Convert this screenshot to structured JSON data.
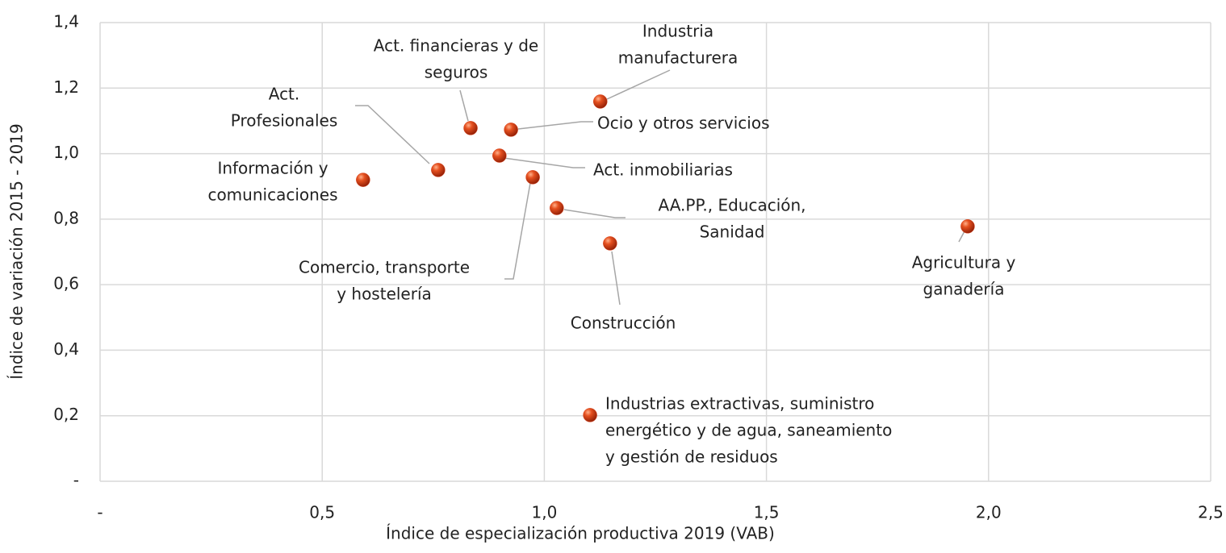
{
  "chart_data": {
    "type": "scatter",
    "x_label": "Índice de especialización productiva 2019 (VAB)",
    "y_label": "Índice de variación 2015 - 2019",
    "xlim": [
      0,
      2.5
    ],
    "ylim": [
      0,
      1.4
    ],
    "xticks": [
      {
        "value": 0,
        "label": "-"
      },
      {
        "value": 0.5,
        "label": "0,5"
      },
      {
        "value": 1.0,
        "label": "1,0"
      },
      {
        "value": 1.5,
        "label": "1,5"
      },
      {
        "value": 2.0,
        "label": "2,0"
      },
      {
        "value": 2.5,
        "label": "2,5"
      }
    ],
    "yticks": [
      {
        "value": 0,
        "label": "-"
      },
      {
        "value": 0.2,
        "label": "0,2"
      },
      {
        "value": 0.4,
        "label": "0,4"
      },
      {
        "value": 0.6,
        "label": "0,6"
      },
      {
        "value": 0.8,
        "label": "0,8"
      },
      {
        "value": 1.0,
        "label": "1,0"
      },
      {
        "value": 1.2,
        "label": "1,2"
      },
      {
        "value": 1.4,
        "label": "1,4"
      }
    ],
    "grid": true,
    "color": "#d8401a",
    "points": [
      {
        "label": [
          "Información y",
          "comunicaciones"
        ],
        "x": 0.592,
        "y": 0.92
      },
      {
        "label": [
          "Act.",
          "Profesionales"
        ],
        "x": 0.761,
        "y": 0.95
      },
      {
        "label": [
          "Act. financieras y de",
          "seguros"
        ],
        "x": 0.834,
        "y": 1.078
      },
      {
        "label": [
          "Act. inmobiliarias"
        ],
        "x": 0.899,
        "y": 0.994
      },
      {
        "label": [
          "Ocio y otros servicios"
        ],
        "x": 0.925,
        "y": 1.073
      },
      {
        "label": [
          "Comercio, transporte",
          "y hostelería"
        ],
        "x": 0.974,
        "y": 0.928
      },
      {
        "label": [
          "AA.PP., Educación,",
          "Sanidad"
        ],
        "x": 1.028,
        "y": 0.834
      },
      {
        "label": [
          "Industria",
          "manufacturera"
        ],
        "x": 1.126,
        "y": 1.159
      },
      {
        "label": [
          "Construcción"
        ],
        "x": 1.148,
        "y": 0.726
      },
      {
        "label": [
          "Industrias extractivas, suministro",
          "energético y de agua, saneamiento",
          "y gestión de residuos"
        ],
        "x": 1.103,
        "y": 0.202
      },
      {
        "label": [
          "Agricultura y",
          "ganadería"
        ],
        "x": 1.953,
        "y": 0.778
      }
    ]
  }
}
